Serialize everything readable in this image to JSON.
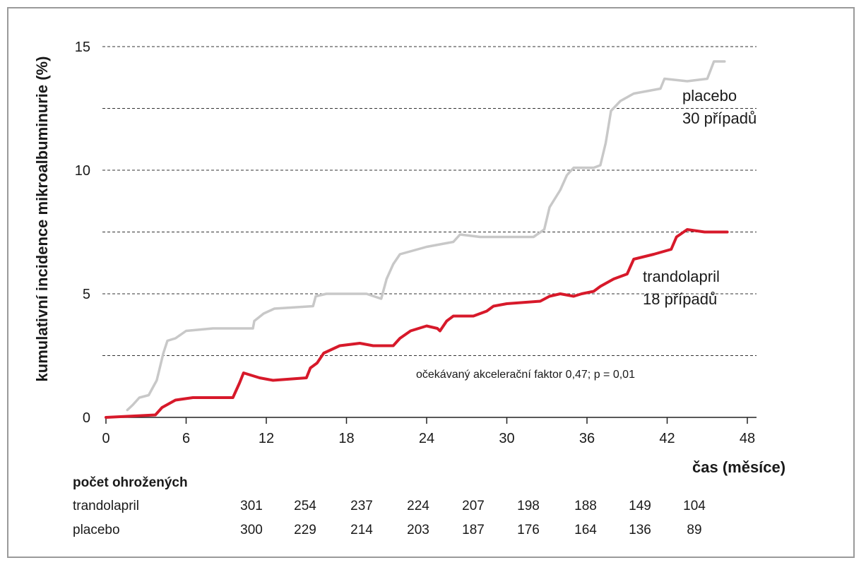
{
  "chart_data": {
    "type": "line",
    "ylabel": "kumulativní incidence mikroalbuminurie (%)",
    "xlabel": "čas (měsíce)",
    "xlim": [
      0,
      48
    ],
    "ylim": [
      0,
      15
    ],
    "x_ticks": [
      0,
      6,
      12,
      18,
      24,
      30,
      36,
      42,
      48
    ],
    "y_ticks": [
      0,
      5,
      10,
      15
    ],
    "grid": "horizontal dashed at 2.5, 5, 7.5, 10, 12.5, 15",
    "annotation": "očekávaný akcelerační faktor 0,47; p = 0,01",
    "series": [
      {
        "name": "placebo",
        "cases_label": "30 případů",
        "color": "#c8c8c8",
        "points": [
          [
            1.6,
            0.3
          ],
          [
            2.0,
            0.5
          ],
          [
            2.5,
            0.8
          ],
          [
            3.2,
            0.9
          ],
          [
            3.8,
            1.5
          ],
          [
            4.3,
            2.6
          ],
          [
            4.6,
            3.1
          ],
          [
            5.2,
            3.2
          ],
          [
            6,
            3.5
          ],
          [
            8,
            3.6
          ],
          [
            11,
            3.6
          ],
          [
            11.1,
            3.9
          ],
          [
            11.8,
            4.2
          ],
          [
            12.6,
            4.4
          ],
          [
            15.5,
            4.5
          ],
          [
            15.7,
            4.9
          ],
          [
            16.5,
            5.0
          ],
          [
            19.5,
            5.0
          ],
          [
            20.6,
            4.8
          ],
          [
            21.0,
            5.6
          ],
          [
            21.5,
            6.2
          ],
          [
            22.0,
            6.6
          ],
          [
            24.0,
            6.9
          ],
          [
            26.0,
            7.1
          ],
          [
            26.5,
            7.4
          ],
          [
            28.0,
            7.3
          ],
          [
            30.0,
            7.3
          ],
          [
            32.0,
            7.3
          ],
          [
            32.8,
            7.6
          ],
          [
            33.2,
            8.5
          ],
          [
            34.0,
            9.2
          ],
          [
            34.5,
            9.8
          ],
          [
            35.0,
            10.1
          ],
          [
            36.5,
            10.1
          ],
          [
            37.0,
            10.2
          ],
          [
            37.4,
            11.1
          ],
          [
            37.8,
            12.4
          ],
          [
            38.5,
            12.8
          ],
          [
            39.5,
            13.1
          ],
          [
            41.5,
            13.3
          ],
          [
            41.8,
            13.7
          ],
          [
            43.5,
            13.6
          ],
          [
            45.0,
            13.7
          ],
          [
            45.5,
            14.4
          ],
          [
            46.3,
            14.4
          ]
        ]
      },
      {
        "name": "trandolapril",
        "cases_label": "18 případů",
        "color": "#d7192a",
        "points": [
          [
            0,
            0.0
          ],
          [
            3.7,
            0.1
          ],
          [
            4.2,
            0.4
          ],
          [
            5.2,
            0.7
          ],
          [
            6.5,
            0.8
          ],
          [
            9.5,
            0.8
          ],
          [
            10.0,
            1.4
          ],
          [
            10.3,
            1.8
          ],
          [
            11.5,
            1.6
          ],
          [
            12.5,
            1.5
          ],
          [
            15.0,
            1.6
          ],
          [
            15.3,
            2.0
          ],
          [
            15.8,
            2.2
          ],
          [
            16.3,
            2.6
          ],
          [
            17.5,
            2.9
          ],
          [
            19.0,
            3.0
          ],
          [
            20.0,
            2.9
          ],
          [
            21.5,
            2.9
          ],
          [
            22.0,
            3.2
          ],
          [
            22.8,
            3.5
          ],
          [
            24.0,
            3.7
          ],
          [
            24.8,
            3.6
          ],
          [
            25.0,
            3.5
          ],
          [
            25.5,
            3.9
          ],
          [
            26.0,
            4.1
          ],
          [
            27.5,
            4.1
          ],
          [
            28.5,
            4.3
          ],
          [
            29.0,
            4.5
          ],
          [
            30.0,
            4.6
          ],
          [
            32.5,
            4.7
          ],
          [
            33.2,
            4.9
          ],
          [
            34.0,
            5.0
          ],
          [
            35.0,
            4.9
          ],
          [
            35.6,
            5.0
          ],
          [
            36.5,
            5.1
          ],
          [
            37.0,
            5.3
          ],
          [
            38.0,
            5.6
          ],
          [
            39.0,
            5.8
          ],
          [
            39.5,
            6.4
          ],
          [
            41.0,
            6.6
          ],
          [
            42.3,
            6.8
          ],
          [
            42.7,
            7.3
          ],
          [
            43.5,
            7.6
          ],
          [
            44.8,
            7.5
          ],
          [
            46.5,
            7.5
          ]
        ]
      }
    ],
    "at_risk": {
      "title": "počet ohrožených",
      "rows": [
        {
          "label": "trandolapril",
          "values": [
            "301",
            "254",
            "237",
            "224",
            "207",
            "198",
            "188",
            "149",
            "104"
          ]
        },
        {
          "label": "placebo",
          "values": [
            "300",
            "229",
            "214",
            "203",
            "187",
            "176",
            "164",
            "136",
            "89"
          ]
        }
      ]
    }
  }
}
